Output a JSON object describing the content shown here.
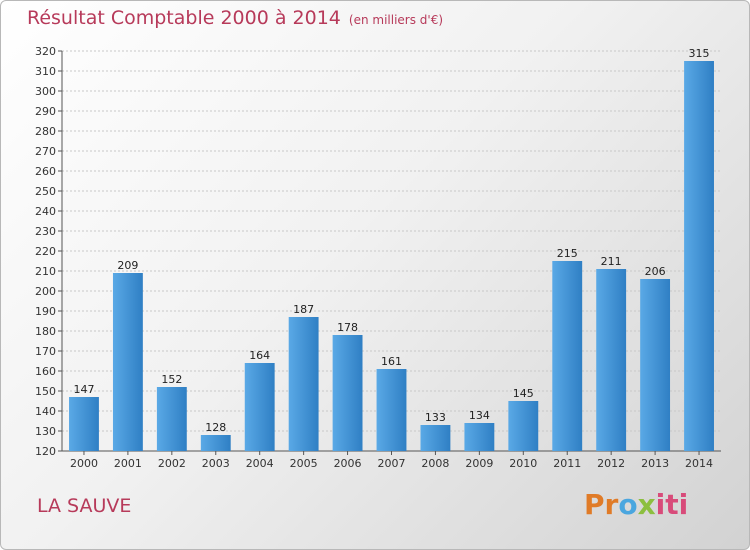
{
  "title": "Résultat Comptable 2000 à 2014",
  "subtitle": "(en milliers d'€)",
  "place": "LA SAUVE",
  "logo": {
    "p1": "Pr",
    "p2": "o",
    "p3": "x",
    "p4": "iti"
  },
  "colors": {
    "bar": "#3d8fd6",
    "bar_light": "#6fb4ea",
    "title": "#b73a5a",
    "grid": "#cccccc"
  },
  "chart_data": {
    "type": "bar",
    "title": "Résultat Comptable 2000 à 2014",
    "subtitle": "(en milliers d'€)",
    "xlabel": "",
    "ylabel": "",
    "categories": [
      "2000",
      "2001",
      "2002",
      "2003",
      "2004",
      "2005",
      "2006",
      "2007",
      "2008",
      "2009",
      "2010",
      "2011",
      "2012",
      "2013",
      "2014"
    ],
    "values": [
      147,
      209,
      152,
      128,
      164,
      187,
      178,
      161,
      133,
      134,
      145,
      215,
      211,
      206,
      315
    ],
    "ylim": [
      120,
      320
    ],
    "ytick_step": 10,
    "grid": true,
    "legend": "none"
  }
}
